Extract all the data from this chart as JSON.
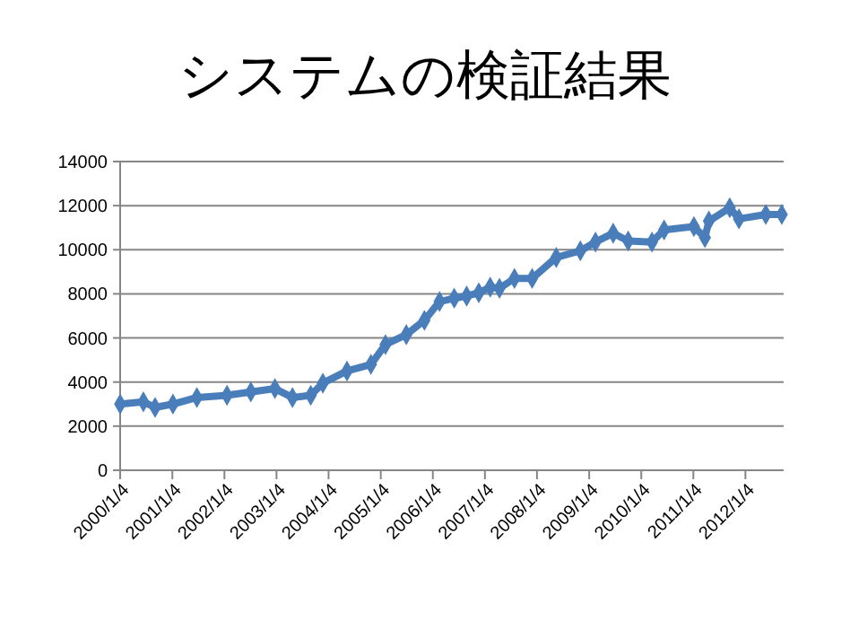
{
  "chart_data": {
    "type": "line",
    "title": "システムの検証結果",
    "x": [
      "2000-01-04",
      "2000-06-15",
      "2000-09-05",
      "2001-01-08",
      "2001-06-25",
      "2002-01-22",
      "2002-07-08",
      "2002-12-24",
      "2003-04-26",
      "2003-09-01",
      "2003-11-25",
      "2004-05-12",
      "2004-10-27",
      "2005-02-06",
      "2005-07-02",
      "2005-11-06",
      "2006-02-20",
      "2006-06-03",
      "2006-08-29",
      "2006-11-22",
      "2007-02-10",
      "2007-04-16",
      "2007-07-30",
      "2007-12-01",
      "2008-05-18",
      "2008-11-03",
      "2009-02-17",
      "2009-06-21",
      "2009-10-04",
      "2010-03-20",
      "2010-06-13",
      "2011-01-08",
      "2011-03-26",
      "2011-04-23",
      "2011-09-16",
      "2011-11-20",
      "2012-05-26",
      "2012-09-15"
    ],
    "series": [
      {
        "color": "#4a7ebb",
        "values": [
          3000,
          3100,
          2850,
          3000,
          3300,
          3400,
          3550,
          3700,
          3300,
          3400,
          3950,
          4500,
          4800,
          5700,
          6150,
          6800,
          7650,
          7800,
          7900,
          8050,
          8300,
          8250,
          8700,
          8700,
          9650,
          9950,
          10350,
          10750,
          10400,
          10350,
          10900,
          11050,
          10550,
          11300,
          11900,
          11400,
          11600,
          11600
        ]
      }
    ],
    "xlim": [
      "2000-01-04",
      "2012-09-28"
    ],
    "xticks": [
      {
        "value": "2000-01-04",
        "label": "2000/1/4"
      },
      {
        "value": "2001-01-04",
        "label": "2001/1/4"
      },
      {
        "value": "2002-01-04",
        "label": "2002/1/4"
      },
      {
        "value": "2003-01-04",
        "label": "2003/1/4"
      },
      {
        "value": "2004-01-04",
        "label": "2004/1/4"
      },
      {
        "value": "2005-01-04",
        "label": "2005/1/4"
      },
      {
        "value": "2006-01-04",
        "label": "2006/1/4"
      },
      {
        "value": "2007-01-04",
        "label": "2007/1/4"
      },
      {
        "value": "2008-01-04",
        "label": "2008/1/4"
      },
      {
        "value": "2009-01-04",
        "label": "2009/1/4"
      },
      {
        "value": "2010-01-04",
        "label": "2010/1/4"
      },
      {
        "value": "2011-01-04",
        "label": "2011/1/4"
      },
      {
        "value": "2012-01-04",
        "label": "2012/1/4"
      }
    ],
    "ylim": [
      0,
      14000
    ],
    "yticks": [
      0,
      2000,
      4000,
      6000,
      8000,
      10000,
      12000,
      14000
    ],
    "grid": "y",
    "marker": "diamond",
    "line_style": "solid"
  }
}
